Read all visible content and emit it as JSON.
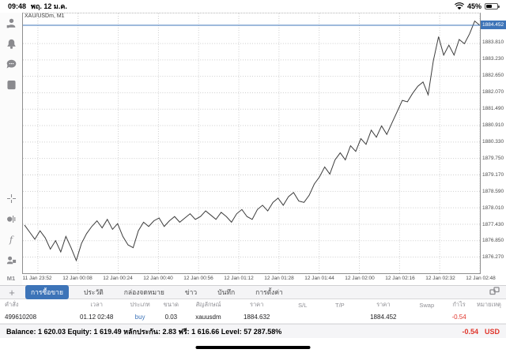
{
  "colors": {
    "accent": "#3d74b8",
    "buy_blue": "#3a7bd5",
    "loss_red": "#e0352b",
    "line": "#3c3c3c",
    "grid": "#cdcdcd"
  },
  "status_bar": {
    "time": "09:48",
    "date": "พฤ. 12 ม.ค.",
    "battery_percent": "45%"
  },
  "sidebar": {
    "icons": [
      "account-icon",
      "notifications-icon",
      "chat-icon",
      "new-order-icon",
      "crosshair-icon",
      "objects-icon",
      "indicators-icon",
      "trade-volume-icon"
    ],
    "timeframe": "M1"
  },
  "chart": {
    "symbol_title": "XAU/USDm, M1",
    "current_price_label": "1884.452"
  },
  "chart_data": {
    "type": "line",
    "title": "XAU/USDm, M1",
    "x_labels": [
      "11 Jan 23:52",
      "12 Jan 00:08",
      "12 Jan 00:24",
      "12 Jan 00:40",
      "12 Jan 00:56",
      "12 Jan 01:12",
      "12 Jan 01:28",
      "12 Jan 01:44",
      "12 Jan 02:00",
      "12 Jan 02:16",
      "12 Jan 02:32",
      "12 Jan 02:48"
    ],
    "y_labels": [
      "1883.810",
      "1883.230",
      "1882.650",
      "1882.070",
      "1881.490",
      "1880.910",
      "1880.330",
      "1879.750",
      "1879.170",
      "1878.590",
      "1878.010",
      "1877.430",
      "1876.850",
      "1876.270"
    ],
    "ylim": [
      1875.7,
      1884.87
    ],
    "current_price": 1884.452,
    "grid": "dotted",
    "legend": "none",
    "series": [
      {
        "name": "XAU/USDm M1 close",
        "values": [
          1877.4,
          1877.15,
          1876.9,
          1877.2,
          1876.95,
          1876.55,
          1876.85,
          1876.45,
          1877.0,
          1876.6,
          1876.15,
          1876.75,
          1877.1,
          1877.35,
          1877.55,
          1877.3,
          1877.6,
          1877.25,
          1877.45,
          1877.0,
          1876.7,
          1876.6,
          1877.2,
          1877.5,
          1877.35,
          1877.55,
          1877.65,
          1877.35,
          1877.55,
          1877.7,
          1877.5,
          1877.65,
          1877.8,
          1877.6,
          1877.7,
          1877.9,
          1877.75,
          1877.6,
          1877.85,
          1877.7,
          1877.5,
          1877.8,
          1877.95,
          1877.7,
          1877.6,
          1877.95,
          1878.1,
          1877.9,
          1878.2,
          1878.35,
          1878.1,
          1878.4,
          1878.55,
          1878.25,
          1878.2,
          1878.45,
          1878.85,
          1879.1,
          1879.45,
          1879.2,
          1879.7,
          1879.95,
          1879.7,
          1880.2,
          1880.0,
          1880.45,
          1880.25,
          1880.75,
          1880.5,
          1880.9,
          1880.6,
          1881.0,
          1881.4,
          1881.8,
          1881.75,
          1882.05,
          1882.3,
          1882.45,
          1882.0,
          1883.2,
          1884.05,
          1883.4,
          1883.75,
          1883.4,
          1883.95,
          1883.8,
          1884.15,
          1884.6,
          1884.45
        ]
      }
    ]
  },
  "tab_bar": {
    "add_label": "+",
    "tabs": [
      {
        "label": "การซื้อขาย",
        "selected": true
      },
      {
        "label": "ประวัติ",
        "selected": false
      },
      {
        "label": "กล่องจดหมาย",
        "selected": false
      },
      {
        "label": "ข่าว",
        "selected": false
      },
      {
        "label": "บันทึก",
        "selected": false
      },
      {
        "label": "การตั้งค่า",
        "selected": false
      }
    ]
  },
  "trade_table": {
    "headers": [
      "คำสั่ง",
      "เวลา",
      "ประเภท",
      "ขนาด",
      "สัญลักษณ์",
      "ราคา",
      "S/L",
      "T/P",
      "ราคา",
      "Swap",
      "กำไร",
      "หมายเหตุ"
    ],
    "rows": [
      {
        "order": "499610208",
        "time": "01.12 02:48",
        "type": "buy",
        "size": "0.03",
        "symbol": "xauusdm",
        "open_price": "1884.632",
        "sl": "",
        "tp": "",
        "price": "1884.452",
        "swap": "",
        "profit": "-0.54",
        "comment": ""
      }
    ]
  },
  "balance_bar": {
    "summary": "Balance: 1 620.03 Equity: 1 619.49 หลักประกัน: 2.83 ฟรี: 1 616.66 Level: 57 287.58%",
    "profit": "-0.54",
    "currency": "USD"
  }
}
